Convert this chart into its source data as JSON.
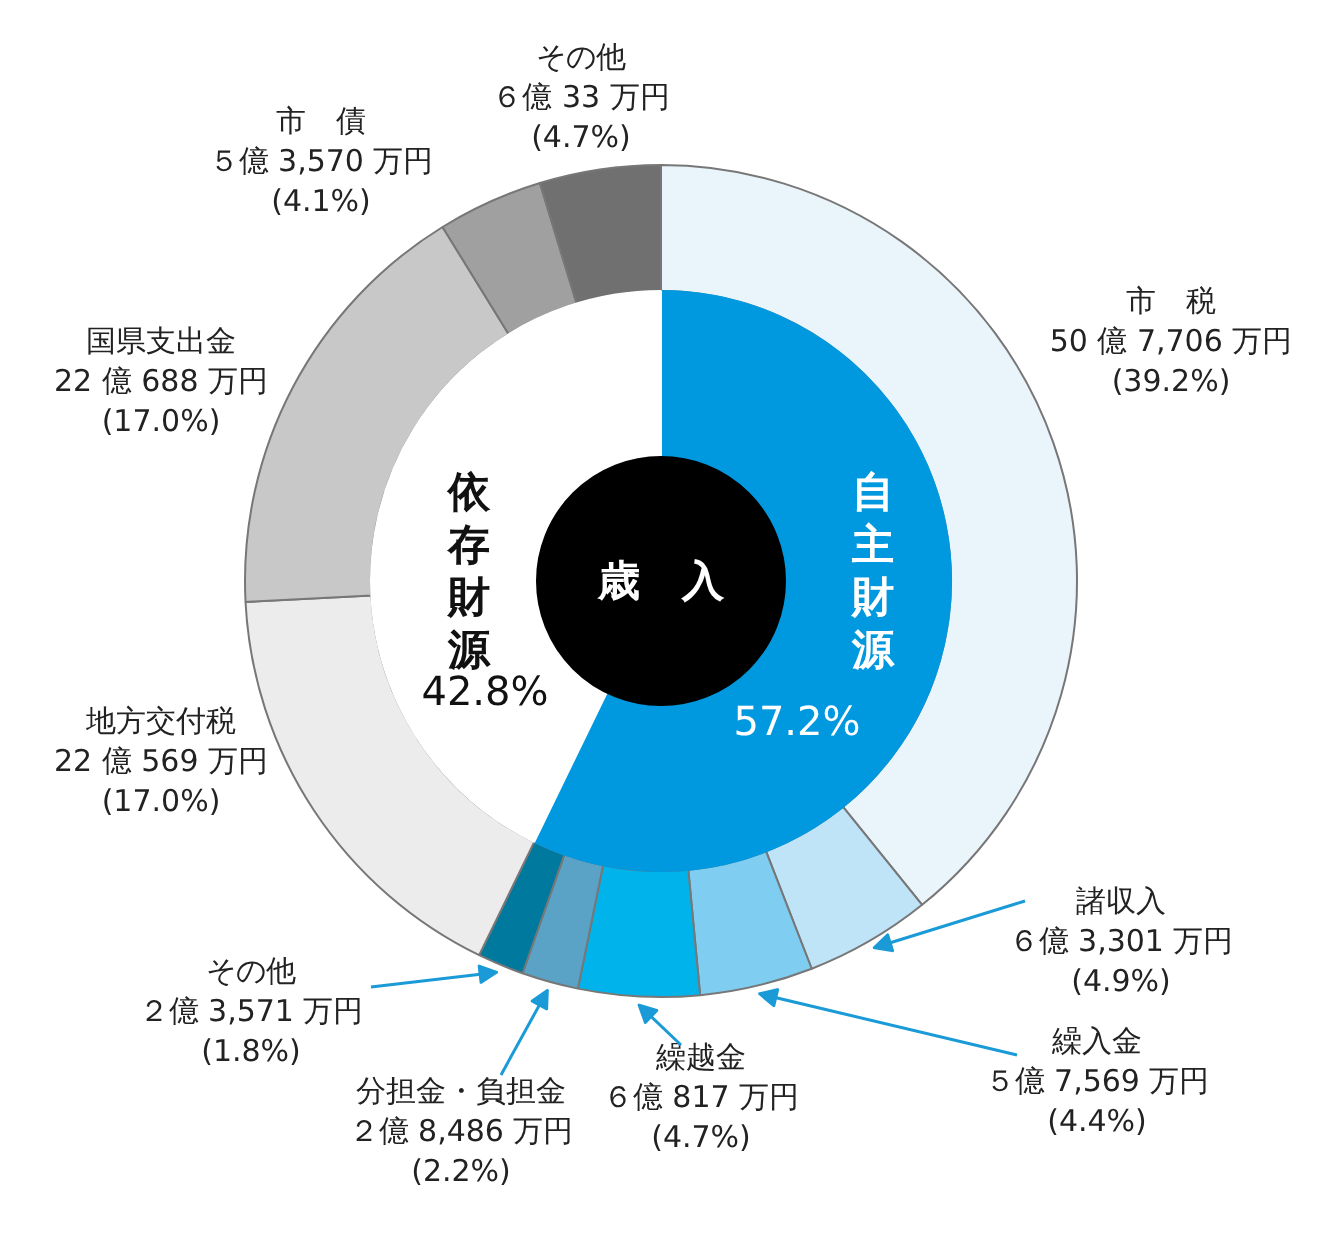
{
  "chart_data": {
    "type": "donut",
    "title": "歳　入",
    "categories": [
      "市　税",
      "諸収入",
      "繰入金",
      "繰越金",
      "分担金・負担金",
      "その他",
      "地方交付税",
      "国県支出金",
      "市　債",
      "その他"
    ],
    "annotations": [
      "自主財源",
      "依存財源"
    ],
    "series": [
      {
        "values": [
          39.2,
          4.9,
          4.4,
          4.7,
          2.2,
          1.8,
          17.0,
          17.0,
          4.1,
          4.7
        ],
        "colors": [
          "#eaf4fb",
          "#bfe3f7",
          "#7fcdf0",
          "#00b4eb",
          "#5ba3c6",
          "#00799e",
          "#ececec",
          "#c8c8c8",
          "#a0a0a0",
          "#707070"
        ],
        "value_labels": [
          "50 億 7,706 万円\n(39.2%)",
          "６億 3,301 万円\n(4.9%)",
          "５億 7,569 万円\n(4.4%)",
          "６億 817 万円\n(4.7%)",
          "２億 8,486 万円\n(2.2%)",
          "２億 3,571 万円\n(1.8%)",
          "22 億 569 万円\n(17.0%)",
          "22 億 688 万円\n(17.0%)",
          "５億 3,570 万円\n(4.1%)",
          "６億 33 万円\n(4.7%)"
        ]
      },
      {
        "values": [
          57.2,
          null,
          null,
          null,
          null,
          null,
          42.8,
          null,
          null,
          null
        ],
        "colors": [
          "#0099e0",
          null,
          null,
          null,
          null,
          null,
          "#ffffff",
          null,
          null,
          null
        ],
        "value_labels": [
          "57.2%",
          null,
          null,
          null,
          null,
          null,
          "42.8%",
          null,
          null,
          null
        ]
      }
    ]
  }
}
